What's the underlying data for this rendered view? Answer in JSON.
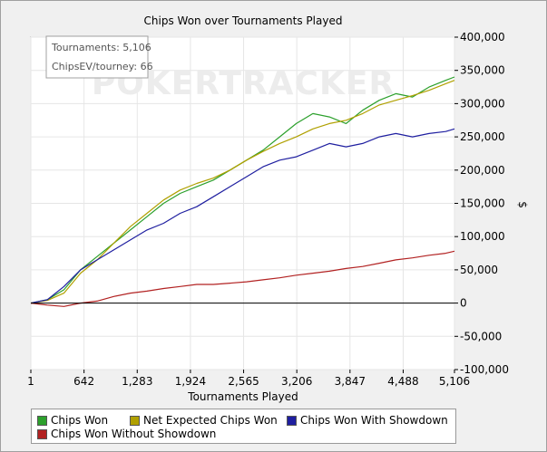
{
  "chart_data": {
    "type": "line",
    "title": "Chips Won over Tournaments Played",
    "xlabel": "Tournaments Played",
    "ylabel": "$",
    "xlim": [
      1,
      5106
    ],
    "ylim": [
      -100000,
      400000
    ],
    "x_ticks": [
      "1",
      "642",
      "1,283",
      "1,924",
      "2,565",
      "3,206",
      "3,847",
      "4,488",
      "5,106"
    ],
    "y_ticks": [
      "400,000",
      "350,000",
      "300,000",
      "250,000",
      "200,000",
      "150,000",
      "100,000",
      "50,000",
      "0",
      "-50,000",
      "-100,000"
    ],
    "grid": true,
    "legend_position": "bottom",
    "watermark": "POKERTRACKER",
    "series": [
      {
        "name": "Chips Won",
        "color": "#2ca02c",
        "x": [
          1,
          200,
          400,
          600,
          800,
          1000,
          1200,
          1400,
          1600,
          1800,
          2000,
          2200,
          2400,
          2600,
          2800,
          3000,
          3200,
          3400,
          3600,
          3800,
          4000,
          4200,
          4400,
          4600,
          4800,
          5000,
          5106
        ],
        "y": [
          0,
          5000,
          20000,
          50000,
          70000,
          90000,
          110000,
          130000,
          150000,
          165000,
          175000,
          185000,
          200000,
          215000,
          230000,
          250000,
          270000,
          285000,
          280000,
          270000,
          290000,
          305000,
          315000,
          310000,
          325000,
          335000,
          340000
        ]
      },
      {
        "name": "Net Expected Chips Won",
        "color": "#b0a000",
        "x": [
          1,
          200,
          400,
          600,
          800,
          1000,
          1200,
          1400,
          1600,
          1800,
          2000,
          2200,
          2400,
          2600,
          2800,
          3000,
          3200,
          3400,
          3600,
          3800,
          4000,
          4200,
          4400,
          4600,
          4800,
          5000,
          5106
        ],
        "y": [
          0,
          4000,
          15000,
          45000,
          65000,
          90000,
          115000,
          135000,
          155000,
          170000,
          180000,
          188000,
          200000,
          215000,
          228000,
          240000,
          250000,
          262000,
          270000,
          275000,
          285000,
          298000,
          305000,
          312000,
          320000,
          330000,
          335000
        ]
      },
      {
        "name": "Chips Won With Showdown",
        "color": "#1f1fa0",
        "x": [
          1,
          200,
          400,
          600,
          800,
          1000,
          1200,
          1400,
          1600,
          1800,
          2000,
          2200,
          2400,
          2600,
          2800,
          3000,
          3200,
          3400,
          3600,
          3800,
          4000,
          4200,
          4400,
          4600,
          4800,
          5000,
          5106
        ],
        "y": [
          0,
          5000,
          25000,
          50000,
          65000,
          80000,
          95000,
          110000,
          120000,
          135000,
          145000,
          160000,
          175000,
          190000,
          205000,
          215000,
          220000,
          230000,
          240000,
          235000,
          240000,
          250000,
          255000,
          250000,
          255000,
          258000,
          262000
        ]
      },
      {
        "name": "Chips Won Without Showdown",
        "color": "#b22222",
        "x": [
          1,
          200,
          400,
          600,
          800,
          1000,
          1200,
          1400,
          1600,
          1800,
          2000,
          2200,
          2400,
          2600,
          2800,
          3000,
          3200,
          3400,
          3600,
          3800,
          4000,
          4200,
          4400,
          4600,
          4800,
          5000,
          5106
        ],
        "y": [
          0,
          -3000,
          -5000,
          0,
          3000,
          10000,
          15000,
          18000,
          22000,
          25000,
          28000,
          28000,
          30000,
          32000,
          35000,
          38000,
          42000,
          45000,
          48000,
          52000,
          55000,
          60000,
          65000,
          68000,
          72000,
          75000,
          78000
        ]
      }
    ]
  },
  "info_box": {
    "tournaments": "Tournaments: 5,106",
    "chips_ev": "ChipsEV/tourney: 66"
  }
}
